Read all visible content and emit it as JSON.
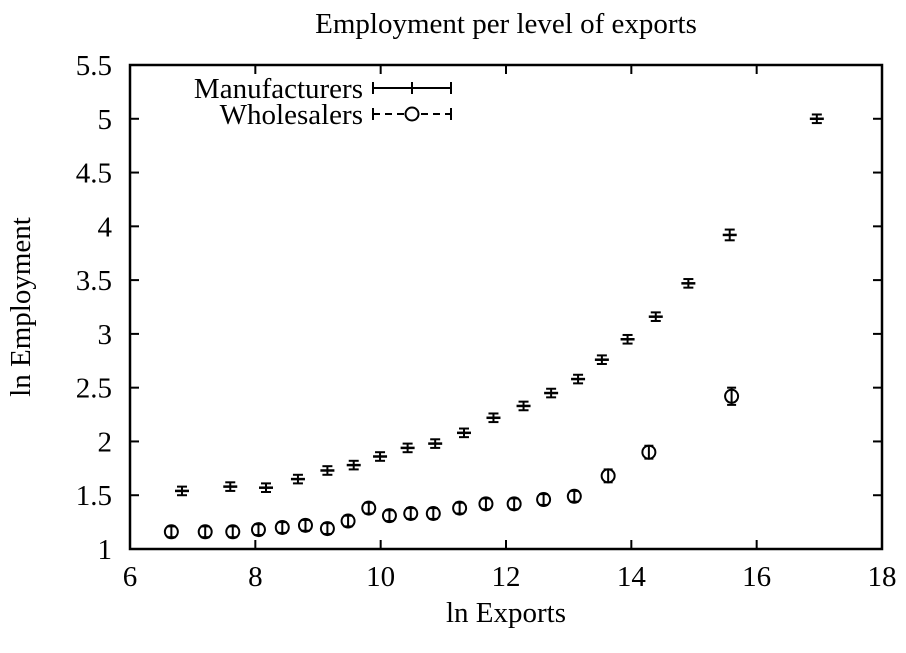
{
  "figure": {
    "background": "#ffffff",
    "foreground": "#000000"
  },
  "chart_data": {
    "type": "scatter",
    "title": "Employment per level of exports",
    "xlabel": "ln Exports",
    "ylabel": "ln Employment",
    "xlim": [
      6,
      18
    ],
    "ylim": [
      1,
      5.5
    ],
    "xtick_labels": [
      "6",
      "8",
      "10",
      "12",
      "14",
      "16",
      "18"
    ],
    "ytick_labels": [
      "1",
      "1.5",
      "2",
      "2.5",
      "3",
      "3.5",
      "4",
      "4.5",
      "5",
      "5.5"
    ],
    "grid": false,
    "legend": {
      "position": "top-left-inside"
    },
    "series": [
      {
        "name": "Manufacturers",
        "marker": "plus-with-errorbar",
        "line_style": "solid",
        "color": "#000000",
        "points": [
          {
            "x": 6.83,
            "y": 1.54,
            "yerr": 0.04
          },
          {
            "x": 7.6,
            "y": 1.58,
            "yerr": 0.04
          },
          {
            "x": 8.17,
            "y": 1.57,
            "yerr": 0.04
          },
          {
            "x": 8.68,
            "y": 1.65,
            "yerr": 0.04
          },
          {
            "x": 9.15,
            "y": 1.73,
            "yerr": 0.04
          },
          {
            "x": 9.57,
            "y": 1.78,
            "yerr": 0.04
          },
          {
            "x": 9.99,
            "y": 1.86,
            "yerr": 0.04
          },
          {
            "x": 10.43,
            "y": 1.94,
            "yerr": 0.04
          },
          {
            "x": 10.87,
            "y": 1.98,
            "yerr": 0.04
          },
          {
            "x": 11.33,
            "y": 2.08,
            "yerr": 0.04
          },
          {
            "x": 11.8,
            "y": 2.22,
            "yerr": 0.04
          },
          {
            "x": 12.28,
            "y": 2.33,
            "yerr": 0.04
          },
          {
            "x": 12.72,
            "y": 2.45,
            "yerr": 0.04
          },
          {
            "x": 13.15,
            "y": 2.58,
            "yerr": 0.04
          },
          {
            "x": 13.53,
            "y": 2.76,
            "yerr": 0.04
          },
          {
            "x": 13.94,
            "y": 2.95,
            "yerr": 0.04
          },
          {
            "x": 14.39,
            "y": 3.16,
            "yerr": 0.04
          },
          {
            "x": 14.91,
            "y": 3.47,
            "yerr": 0.04
          },
          {
            "x": 15.57,
            "y": 3.92,
            "yerr": 0.05
          },
          {
            "x": 16.96,
            "y": 5.0,
            "yerr": 0.04
          }
        ]
      },
      {
        "name": "Wholesalers",
        "marker": "circle-with-errorbar",
        "line_style": "dashed",
        "color": "#000000",
        "points": [
          {
            "x": 6.66,
            "y": 1.16,
            "yerr": 0.05
          },
          {
            "x": 7.2,
            "y": 1.16,
            "yerr": 0.05
          },
          {
            "x": 7.64,
            "y": 1.16,
            "yerr": 0.05
          },
          {
            "x": 8.05,
            "y": 1.18,
            "yerr": 0.05
          },
          {
            "x": 8.43,
            "y": 1.2,
            "yerr": 0.05
          },
          {
            "x": 8.8,
            "y": 1.22,
            "yerr": 0.05
          },
          {
            "x": 9.15,
            "y": 1.19,
            "yerr": 0.05
          },
          {
            "x": 9.48,
            "y": 1.26,
            "yerr": 0.05
          },
          {
            "x": 9.81,
            "y": 1.38,
            "yerr": 0.05
          },
          {
            "x": 10.14,
            "y": 1.31,
            "yerr": 0.05
          },
          {
            "x": 10.48,
            "y": 1.33,
            "yerr": 0.05
          },
          {
            "x": 10.84,
            "y": 1.33,
            "yerr": 0.05
          },
          {
            "x": 11.26,
            "y": 1.38,
            "yerr": 0.05
          },
          {
            "x": 11.68,
            "y": 1.42,
            "yerr": 0.05
          },
          {
            "x": 12.13,
            "y": 1.42,
            "yerr": 0.05
          },
          {
            "x": 12.6,
            "y": 1.46,
            "yerr": 0.05
          },
          {
            "x": 13.09,
            "y": 1.49,
            "yerr": 0.05
          },
          {
            "x": 13.63,
            "y": 1.68,
            "yerr": 0.06
          },
          {
            "x": 14.28,
            "y": 1.9,
            "yerr": 0.06
          },
          {
            "x": 15.6,
            "y": 2.42,
            "yerr": 0.08
          }
        ]
      }
    ]
  }
}
